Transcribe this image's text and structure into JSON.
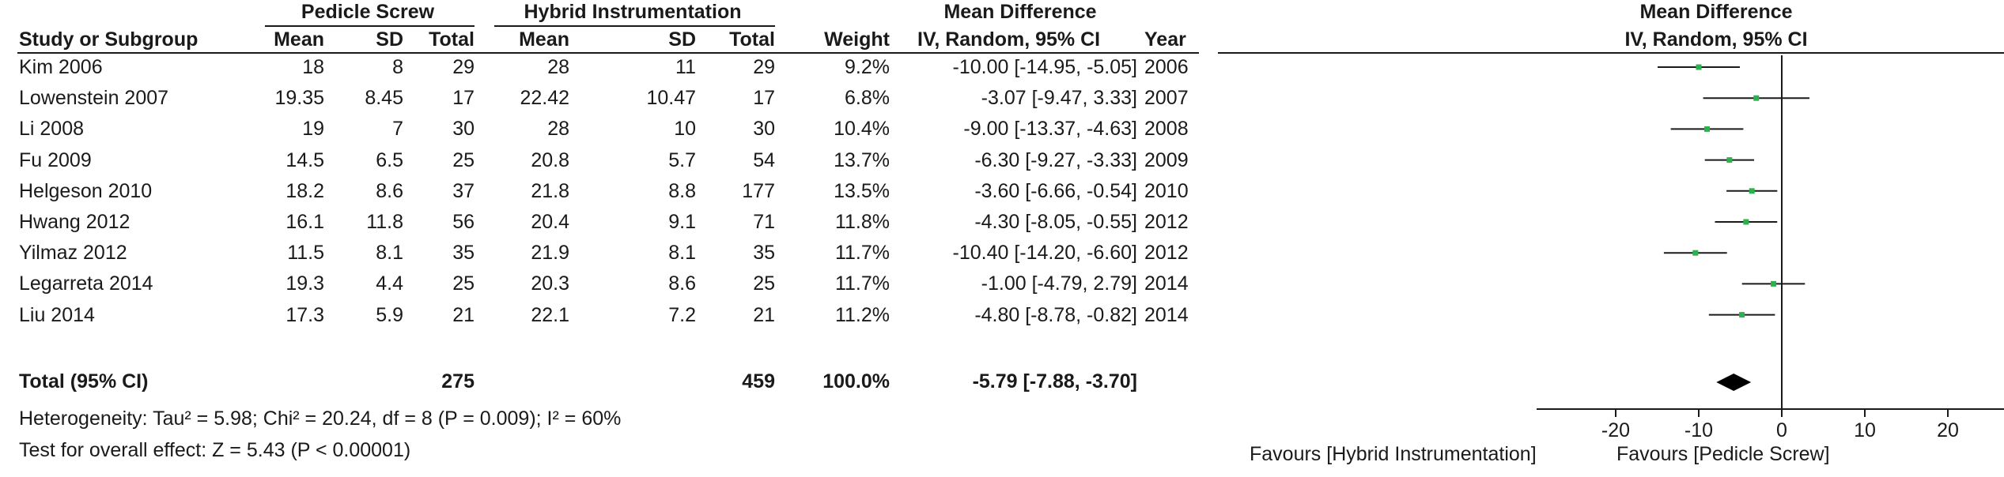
{
  "header": {
    "group1": "Pedicle Screw",
    "group2": "Hybrid Instrumentation",
    "effect_title": "Mean Difference",
    "plot_title": "Mean Difference",
    "study_col": "Study or Subgroup",
    "mean1": "Mean",
    "sd1": "SD",
    "total1": "Total",
    "mean2": "Mean",
    "sd2": "SD",
    "total2": "Total",
    "weight": "Weight",
    "effect_col": "IV, Random, 95% CI",
    "year": "Year",
    "plot_col": "IV, Random, 95% CI"
  },
  "studies": [
    {
      "name": "Kim 2006",
      "mean1": "18",
      "sd1": "8",
      "total1": "29",
      "mean2": "28",
      "sd2": "11",
      "total2": "29",
      "weight": "9.2%",
      "ci": "-10.00 [-14.95, -5.05]",
      "year": "2006"
    },
    {
      "name": "Lowenstein 2007",
      "mean1": "19.35",
      "sd1": "8.45",
      "total1": "17",
      "mean2": "22.42",
      "sd2": "10.47",
      "total2": "17",
      "weight": "6.8%",
      "ci": "-3.07 [-9.47, 3.33]",
      "year": "2007"
    },
    {
      "name": "Li 2008",
      "mean1": "19",
      "sd1": "7",
      "total1": "30",
      "mean2": "28",
      "sd2": "10",
      "total2": "30",
      "weight": "10.4%",
      "ci": "-9.00 [-13.37, -4.63]",
      "year": "2008"
    },
    {
      "name": "Fu 2009",
      "mean1": "14.5",
      "sd1": "6.5",
      "total1": "25",
      "mean2": "20.8",
      "sd2": "5.7",
      "total2": "54",
      "weight": "13.7%",
      "ci": "-6.30 [-9.27, -3.33]",
      "year": "2009"
    },
    {
      "name": "Helgeson 2010",
      "mean1": "18.2",
      "sd1": "8.6",
      "total1": "37",
      "mean2": "21.8",
      "sd2": "8.8",
      "total2": "177",
      "weight": "13.5%",
      "ci": "-3.60 [-6.66, -0.54]",
      "year": "2010"
    },
    {
      "name": "Hwang 2012",
      "mean1": "16.1",
      "sd1": "11.8",
      "total1": "56",
      "mean2": "20.4",
      "sd2": "9.1",
      "total2": "71",
      "weight": "11.8%",
      "ci": "-4.30 [-8.05, -0.55]",
      "year": "2012"
    },
    {
      "name": "Yilmaz 2012",
      "mean1": "11.5",
      "sd1": "8.1",
      "total1": "35",
      "mean2": "21.9",
      "sd2": "8.1",
      "total2": "35",
      "weight": "11.7%",
      "ci": "-10.40 [-14.20, -6.60]",
      "year": "2012"
    },
    {
      "name": "Legarreta 2014",
      "mean1": "19.3",
      "sd1": "4.4",
      "total1": "25",
      "mean2": "20.3",
      "sd2": "8.6",
      "total2": "25",
      "weight": "11.7%",
      "ci": "-1.00 [-4.79, 2.79]",
      "year": "2014"
    },
    {
      "name": "Liu 2014",
      "mean1": "17.3",
      "sd1": "5.9",
      "total1": "21",
      "mean2": "22.1",
      "sd2": "7.2",
      "total2": "21",
      "weight": "11.2%",
      "ci": "-4.80 [-8.78, -0.82]",
      "year": "2014"
    }
  ],
  "total": {
    "label": "Total (95% CI)",
    "total1": "275",
    "total2": "459",
    "weight": "100.0%",
    "ci": "-5.79 [-7.88, -3.70]"
  },
  "heterogeneity": "Heterogeneity: Tau² = 5.98; Chi² = 20.24, df = 8 (P = 0.009); I² = 60%",
  "overall_effect": "Test for overall effect: Z = 5.43 (P < 0.00001)",
  "colors": {
    "marker": "#2bb24c",
    "line": "#1a1a1a",
    "diamond": "#000000"
  },
  "chart_data": {
    "type": "forest",
    "xlim": [
      -30,
      30
    ],
    "xticks": [
      -20,
      -10,
      0,
      10,
      20
    ],
    "favours_left": "Favours [Hybrid Instrumentation]",
    "favours_right": "Favours [Pedicle Screw]",
    "estimates": [
      {
        "study": "Kim 2006",
        "md": -10.0,
        "lower": -14.95,
        "upper": -5.05,
        "weight": 9.2
      },
      {
        "study": "Lowenstein 2007",
        "md": -3.07,
        "lower": -9.47,
        "upper": 3.33,
        "weight": 6.8
      },
      {
        "study": "Li 2008",
        "md": -9.0,
        "lower": -13.37,
        "upper": -4.63,
        "weight": 10.4
      },
      {
        "study": "Fu 2009",
        "md": -6.3,
        "lower": -9.27,
        "upper": -3.33,
        "weight": 13.7
      },
      {
        "study": "Helgeson 2010",
        "md": -3.6,
        "lower": -6.66,
        "upper": -0.54,
        "weight": 13.5
      },
      {
        "study": "Hwang 2012",
        "md": -4.3,
        "lower": -8.05,
        "upper": -0.55,
        "weight": 11.8
      },
      {
        "study": "Yilmaz 2012",
        "md": -10.4,
        "lower": -14.2,
        "upper": -6.6,
        "weight": 11.7
      },
      {
        "study": "Legarreta 2014",
        "md": -1.0,
        "lower": -4.79,
        "upper": 2.79,
        "weight": 11.7
      },
      {
        "study": "Liu 2014",
        "md": -4.8,
        "lower": -8.78,
        "upper": -0.82,
        "weight": 11.2
      }
    ],
    "pooled": {
      "md": -5.79,
      "lower": -7.88,
      "upper": -3.7
    }
  }
}
